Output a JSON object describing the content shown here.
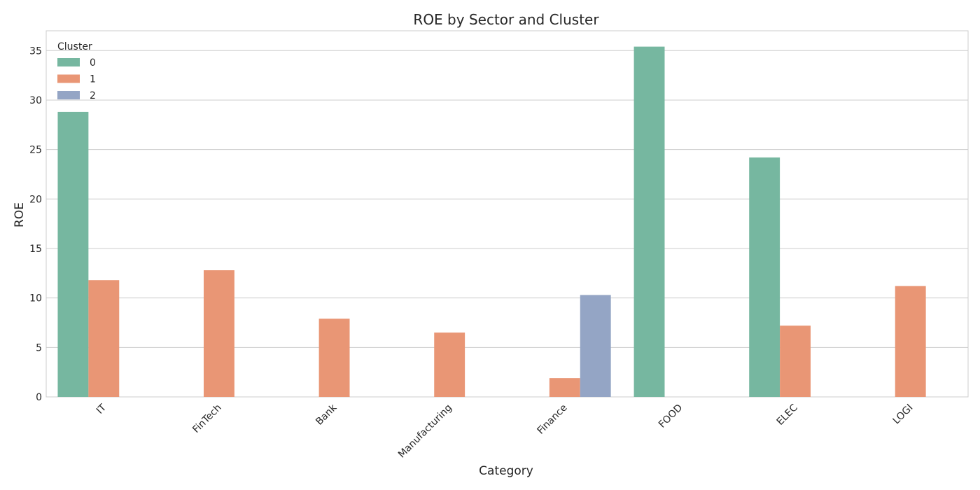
{
  "chart_data": {
    "type": "bar",
    "title": "ROE by Sector and Cluster",
    "xlabel": "Category",
    "ylabel": "ROE",
    "ylim": [
      0,
      37
    ],
    "yticks": [
      0,
      5,
      10,
      15,
      20,
      25,
      30,
      35
    ],
    "grid": "horizontal",
    "legend": {
      "title": "Cluster",
      "placement": "top-left"
    },
    "categories": [
      "IT",
      "FinTech",
      "Bank",
      "Manufacturing",
      "Finance",
      "FOOD",
      "ELEC",
      "LOGI"
    ],
    "series": [
      {
        "name": "0",
        "color": "#76b7a0",
        "values": [
          28.8,
          null,
          null,
          null,
          null,
          35.4,
          24.2,
          null
        ]
      },
      {
        "name": "1",
        "color": "#e99675",
        "values": [
          11.8,
          12.8,
          7.9,
          6.5,
          1.9,
          null,
          7.2,
          11.2
        ]
      },
      {
        "name": "2",
        "color": "#94a5c5",
        "values": [
          null,
          null,
          null,
          null,
          10.3,
          null,
          null,
          null
        ]
      }
    ]
  }
}
